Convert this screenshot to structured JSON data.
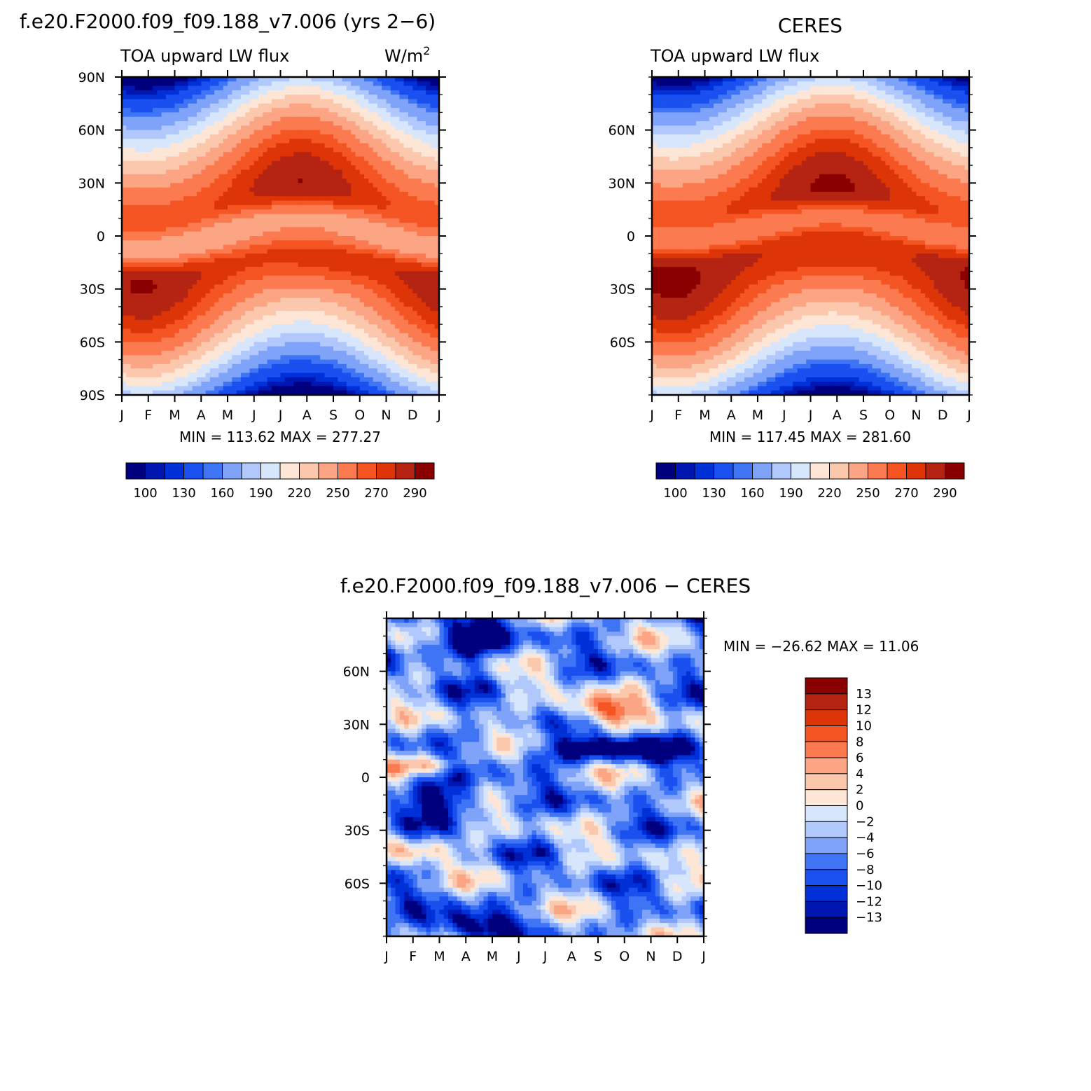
{
  "chart_data": [
    {
      "type": "heatmap",
      "title": "f.e20.F2000.f09_f09.188_v7.006 (yrs 2−6)",
      "left_string": "TOA upward LW flux",
      "units_html": "W/m",
      "units_sup": "2",
      "x": [
        "J",
        "F",
        "M",
        "A",
        "M",
        "J",
        "J",
        "A",
        "S",
        "O",
        "N",
        "D",
        "J"
      ],
      "y_ticks": [
        "90N",
        "60N",
        "30N",
        "0",
        "30S",
        "60S",
        "90S"
      ],
      "y_tick_values": [
        90,
        60,
        30,
        0,
        -30,
        -60,
        -90
      ],
      "ylim": [
        -90,
        90
      ],
      "stats": "MIN = 113.62  MAX = 277.27",
      "min": 113.62,
      "max": 277.27,
      "colorbar": {
        "labels": [
          "100",
          "130",
          "160",
          "190",
          "220",
          "250",
          "270",
          "290"
        ],
        "levels": [
          90,
          100,
          110,
          130,
          140,
          160,
          175,
          190,
          205,
          220,
          235,
          250,
          260,
          270,
          280,
          290
        ],
        "colors": [
          "#00007f",
          "#0016b0",
          "#0030d8",
          "#1a4ff0",
          "#3f74f5",
          "#7fa3f8",
          "#b0c8fb",
          "#d8e6fc",
          "#fde6d6",
          "#fcc8ad",
          "#fba584",
          "#fb7a50",
          "#f45523",
          "#dd3508",
          "#b52412",
          "#8a0000"
        ]
      },
      "field": "model_lw"
    },
    {
      "type": "heatmap",
      "title": "CERES",
      "left_string": "TOA upward LW flux",
      "x": [
        "J",
        "F",
        "M",
        "A",
        "M",
        "J",
        "J",
        "A",
        "S",
        "O",
        "N",
        "D",
        "J"
      ],
      "y_ticks": [
        "60N",
        "30N",
        "0",
        "30S",
        "60S"
      ],
      "y_tick_values": [
        60,
        30,
        0,
        -30,
        -60
      ],
      "ylim": [
        -90,
        90
      ],
      "stats": "MIN = 117.45  MAX = 281.60",
      "min": 117.45,
      "max": 281.6,
      "colorbar": {
        "labels": [
          "100",
          "130",
          "160",
          "190",
          "220",
          "250",
          "270",
          "290"
        ],
        "levels": [
          90,
          100,
          110,
          130,
          140,
          160,
          175,
          190,
          205,
          220,
          235,
          250,
          260,
          270,
          280,
          290
        ],
        "colors": [
          "#00007f",
          "#0016b0",
          "#0030d8",
          "#1a4ff0",
          "#3f74f5",
          "#7fa3f8",
          "#b0c8fb",
          "#d8e6fc",
          "#fde6d6",
          "#fcc8ad",
          "#fba584",
          "#fb7a50",
          "#f45523",
          "#dd3508",
          "#b52412",
          "#8a0000"
        ]
      },
      "field": "ceres_lw"
    },
    {
      "type": "heatmap",
      "title": "f.e20.F2000.f09_f09.188_v7.006 − CERES",
      "x": [
        "J",
        "F",
        "M",
        "A",
        "M",
        "J",
        "J",
        "A",
        "S",
        "O",
        "N",
        "D",
        "J"
      ],
      "y_ticks": [
        "60N",
        "30N",
        "0",
        "30S",
        "60S"
      ],
      "y_tick_values": [
        60,
        30,
        0,
        -30,
        -60
      ],
      "ylim": [
        -90,
        90
      ],
      "stats": "MIN = −26.62 MAX =   11.06",
      "min": -26.62,
      "max": 11.06,
      "colorbar": {
        "labels": [
          "13",
          "12",
          "10",
          "8",
          "6",
          "4",
          "2",
          "0",
          "−2",
          "−4",
          "−6",
          "−8",
          "−10",
          "−12",
          "−13"
        ],
        "levels": [
          -13,
          -12,
          -10,
          -8,
          -6,
          -4,
          -2,
          0,
          2,
          4,
          6,
          8,
          10,
          12,
          13
        ],
        "colors": [
          "#00007f",
          "#0016b0",
          "#0030d8",
          "#1a4ff0",
          "#3f74f5",
          "#7fa3f8",
          "#b0c8fb",
          "#d8e6fc",
          "#fde6d6",
          "#fcc8ad",
          "#fba584",
          "#fb7a50",
          "#f45523",
          "#dd3508",
          "#b52412",
          "#8a0000"
        ]
      },
      "field": "difference"
    }
  ]
}
